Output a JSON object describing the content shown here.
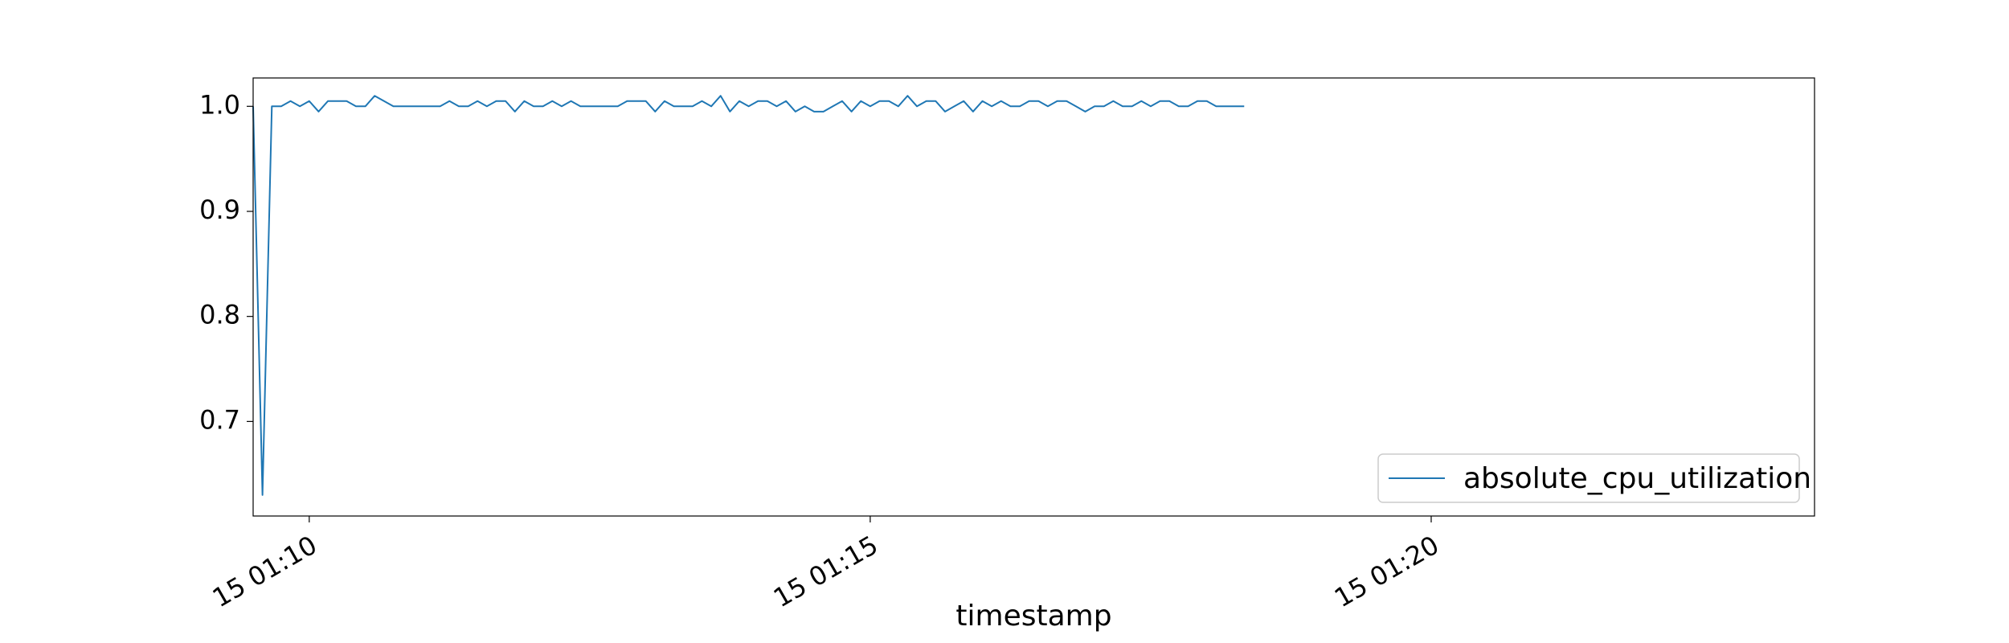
{
  "chart_data": {
    "type": "line",
    "title": "",
    "xlabel": "timestamp",
    "ylabel": "",
    "x_axis_kind": "time",
    "x_start": "15 01:09:30",
    "x_interval_seconds": 5,
    "xlim": [
      "15 01:09:30",
      "15 01:23:25"
    ],
    "ylim": [
      0.61,
      1.027
    ],
    "x_ticks": [
      {
        "time": "15 01:10:00",
        "label": "15 01:10"
      },
      {
        "time": "15 01:15:00",
        "label": "15 01:15"
      },
      {
        "time": "15 01:20:00",
        "label": "15 01:20"
      }
    ],
    "y_ticks": [
      0.7,
      0.8,
      0.9,
      1.0
    ],
    "y_tick_labels": [
      "0.7",
      "0.8",
      "0.9",
      "1.0"
    ],
    "grid": false,
    "legend": {
      "position": "lower-right",
      "entries": [
        "absolute_cpu_utilization"
      ]
    },
    "series": [
      {
        "name": "absolute_cpu_utilization",
        "color": "#1f77b4",
        "values": [
          1.0,
          0.63,
          1.0,
          1.0,
          1.005,
          1.0,
          1.005,
          0.995,
          1.005,
          1.005,
          1.005,
          1.0,
          1.0,
          1.01,
          1.005,
          1.0,
          1.0,
          1.0,
          1.0,
          1.0,
          1.0,
          1.005,
          1.0,
          1.0,
          1.005,
          1.0,
          1.005,
          1.005,
          0.995,
          1.005,
          1.0,
          1.0,
          1.005,
          1.0,
          1.005,
          1.0,
          1.0,
          1.0,
          1.0,
          1.0,
          1.005,
          1.005,
          1.005,
          0.995,
          1.005,
          1.0,
          1.0,
          1.0,
          1.005,
          1.0,
          1.01,
          0.995,
          1.005,
          1.0,
          1.005,
          1.005,
          1.0,
          1.005,
          0.995,
          1.0,
          0.995,
          0.995,
          1.0,
          1.005,
          0.995,
          1.005,
          1.0,
          1.005,
          1.005,
          1.0,
          1.01,
          1.0,
          1.005,
          1.005,
          0.995,
          1.0,
          1.005,
          0.995,
          1.005,
          1.0,
          1.005,
          1.0,
          1.0,
          1.005,
          1.005,
          1.0,
          1.005,
          1.005,
          1.0,
          0.995,
          1.0,
          1.0,
          1.005,
          1.0,
          1.0,
          1.005,
          1.0,
          1.005,
          1.005,
          1.0,
          1.0,
          1.005,
          1.005,
          1.0,
          1.0,
          1.0,
          1.0
        ]
      }
    ]
  }
}
